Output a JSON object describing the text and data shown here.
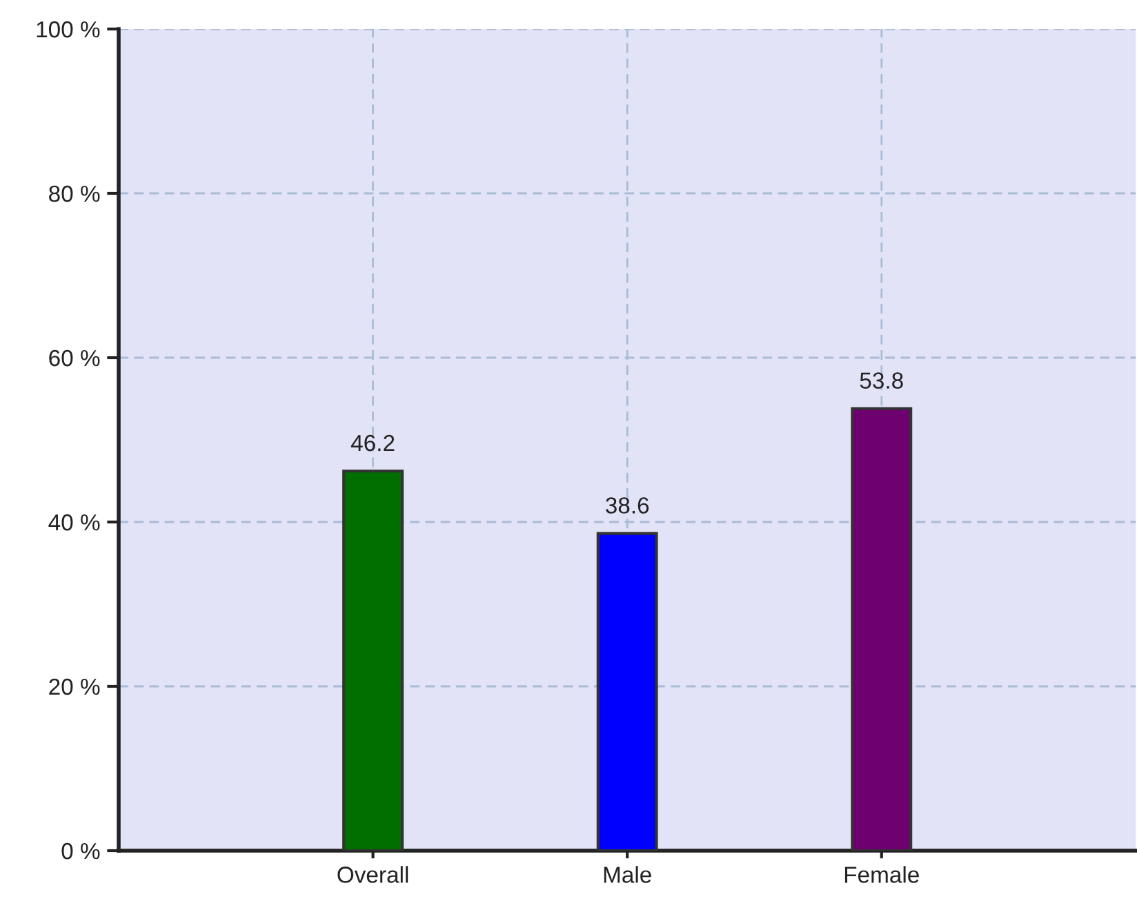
{
  "chart_data": {
    "type": "bar",
    "categories": [
      "Overall",
      "Male",
      "Female"
    ],
    "values": [
      46.2,
      38.6,
      53.8
    ],
    "colors": [
      "#006f00",
      "#0000ff",
      "#6f006f"
    ],
    "ylim": [
      0,
      100
    ],
    "yticks": [
      {
        "value": 0,
        "label": "0 %"
      },
      {
        "value": 20,
        "label": "20 %"
      },
      {
        "value": 40,
        "label": "40 %"
      },
      {
        "value": 60,
        "label": "60 %"
      },
      {
        "value": 80,
        "label": "80 %"
      },
      {
        "value": 100,
        "label": "100 %"
      }
    ],
    "grid": true,
    "data_labels": true
  }
}
